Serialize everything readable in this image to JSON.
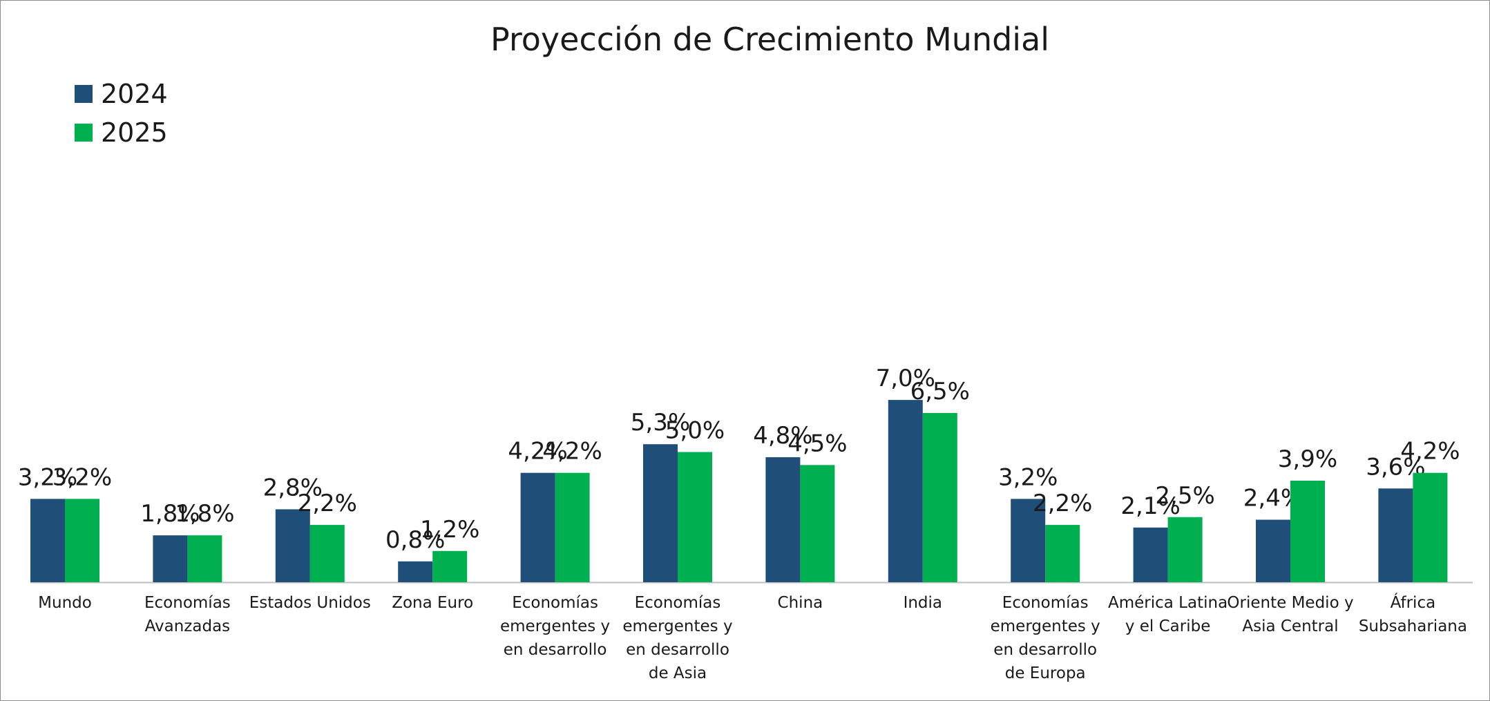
{
  "chart_data": {
    "type": "bar",
    "title": "Proyección de Crecimiento Mundial",
    "xlabel": "",
    "ylabel": "",
    "ylim": [
      0,
      7.6
    ],
    "grid": false,
    "legend_position": "top-left",
    "categories": [
      "Mundo",
      "Economías Avanzadas",
      "Estados Unidos",
      "Zona Euro",
      "Economías emergentes y en desarrollo",
      "Economías emergentes y en desarrollo de Asia",
      "China",
      "India",
      "Economías emergentes y en desarrollo de Europa",
      "América Latina y el Caribe",
      "Oriente Medio y Asia Central",
      "África Subsahariana"
    ],
    "category_lines": [
      [
        "Mundo"
      ],
      [
        "Economías",
        "Avanzadas"
      ],
      [
        "Estados Unidos"
      ],
      [
        "Zona Euro"
      ],
      [
        "Economías",
        "emergentes y",
        "en desarrollo"
      ],
      [
        "Economías",
        "emergentes y",
        "en desarrollo",
        "de Asia"
      ],
      [
        "China"
      ],
      [
        "India"
      ],
      [
        "Economías",
        "emergentes y",
        "en desarrollo",
        "de Europa"
      ],
      [
        "América Latina",
        "y el Caribe"
      ],
      [
        "Oriente Medio y",
        "Asia Central"
      ],
      [
        "África",
        "Subsahariana"
      ]
    ],
    "series": [
      {
        "name": "2024",
        "color": "#1F4E79",
        "values": [
          3.2,
          1.8,
          2.8,
          0.8,
          4.2,
          5.3,
          4.8,
          7.0,
          3.2,
          2.1,
          2.4,
          3.6
        ],
        "labels": [
          "3,2%",
          "1,8%",
          "2,8%",
          "0,8%",
          "4,2%",
          "5,3%",
          "4,8%",
          "7,0%",
          "3,2%",
          "2,1%",
          "2,4%",
          "3,6%"
        ]
      },
      {
        "name": "2025",
        "color": "#00B050",
        "values": [
          3.2,
          1.8,
          2.2,
          1.2,
          4.2,
          5.0,
          4.5,
          6.5,
          2.2,
          2.5,
          3.9,
          4.2
        ],
        "labels": [
          "3,2%",
          "1,8%",
          "2,2%",
          "1,2%",
          "4,2%",
          "5,0%",
          "4,5%",
          "6,5%",
          "2,2%",
          "2,5%",
          "3,9%",
          "4,2%"
        ]
      }
    ],
    "axis_color": "#BFBFBF"
  }
}
